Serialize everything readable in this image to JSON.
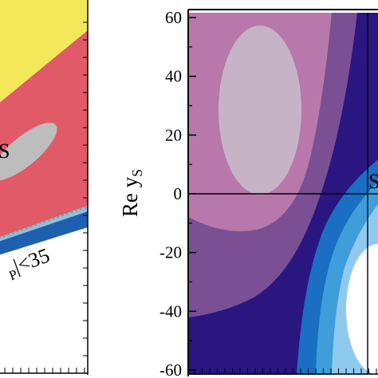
{
  "chart_data": [
    {
      "type": "contour",
      "panel": "left",
      "region_colors": {
        "top": "#f2e85a",
        "middle": "#e05a68",
        "inner_blob": "#bdbdbd",
        "lower_band": "#1f5fb0",
        "boundary_band": "#8ec0df",
        "background": "#ffffff"
      },
      "annotations": [
        {
          "id": "cut-label",
          "text": "|<35",
          "subscript": "P"
        },
        {
          "id": "blob-label",
          "text": "S"
        }
      ]
    },
    {
      "type": "contour",
      "panel": "right",
      "ylabel": "Re y",
      "ylabel_subscript": "S",
      "ylim": [
        -60,
        60
      ],
      "yticks": [
        60,
        40,
        20,
        0,
        -20,
        -40,
        -60
      ],
      "ytick_labels": [
        "60",
        "40",
        "20",
        "0",
        "-20",
        "-40",
        "-60"
      ],
      "reference_line_y": 0,
      "region_colors": {
        "ellipse_center": "#c6b3c6",
        "purple_light": "#b878ab",
        "purple_mid": "#7a4f94",
        "navy": "#2a1680",
        "blue_dark": "#1a6fc2",
        "blue_mid": "#3f9ed9",
        "blue_light": "#8fcaee",
        "white_core": "#ffffff"
      },
      "annotations": [
        {
          "id": "edge-label",
          "text": "S"
        }
      ]
    }
  ]
}
